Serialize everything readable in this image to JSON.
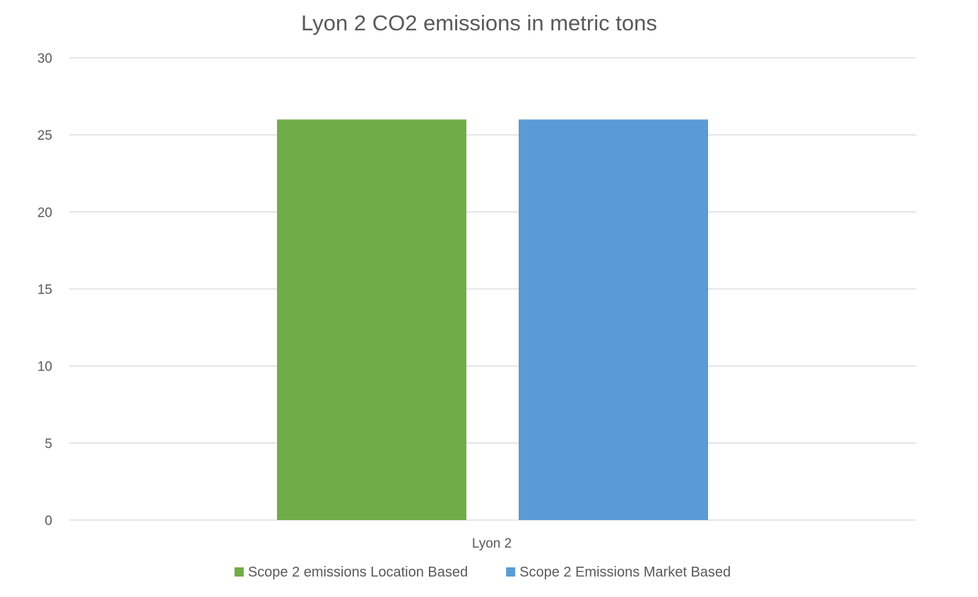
{
  "chart_data": {
    "type": "bar",
    "title": "Lyon 2 CO2 emissions in metric tons",
    "categories": [
      "Lyon 2"
    ],
    "series": [
      {
        "name": "Scope 2 emissions Location Based",
        "values": [
          26
        ],
        "color": "#70ad47"
      },
      {
        "name": "Scope 2 Emissions Market Based",
        "values": [
          26
        ],
        "color": "#5b9bd5"
      }
    ],
    "ylim": [
      0,
      30
    ],
    "yticks": [
      0,
      5,
      10,
      15,
      20,
      25,
      30
    ],
    "xlabel": "",
    "ylabel": "",
    "grid": true,
    "legend_position": "bottom"
  }
}
